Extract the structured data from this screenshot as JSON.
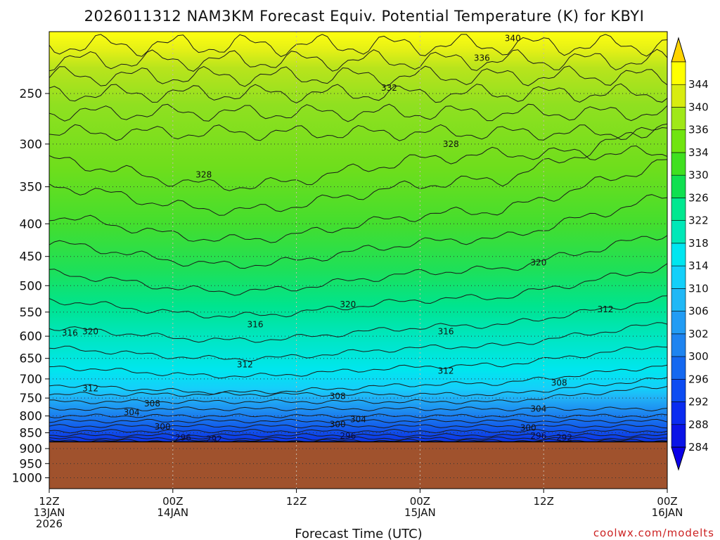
{
  "chart_data": {
    "type": "heatmap",
    "title": "2026011312 NAM3KM Forecast Equiv. Potential Temperature (K) for KBYI",
    "xlabel": "Forecast Time (UTC)",
    "ylabel": "",
    "credit": "coolwx.com/modelts",
    "y_scale": "log-pressure",
    "y_ticks": [
      "250",
      "300",
      "350",
      "400",
      "450",
      "500",
      "550",
      "600",
      "650",
      "700",
      "750",
      "800",
      "850",
      "900",
      "950",
      "1000"
    ],
    "x_ticks": [
      {
        "line1": "12Z",
        "line2": "13JAN",
        "line3": "2026"
      },
      {
        "line1": "00Z",
        "line2": "14JAN",
        "line3": ""
      },
      {
        "line1": "12Z",
        "line2": "",
        "line3": ""
      },
      {
        "line1": "00Z",
        "line2": "15JAN",
        "line3": ""
      },
      {
        "line1": "12Z",
        "line2": "",
        "line3": ""
      },
      {
        "line1": "00Z",
        "line2": "16JAN",
        "line3": ""
      }
    ],
    "x_hours": [
      0,
      12,
      24,
      36,
      48,
      60
    ],
    "colorbar_levels": [
      "284",
      "288",
      "292",
      "296",
      "300",
      "302",
      "306",
      "310",
      "314",
      "318",
      "322",
      "326",
      "330",
      "334",
      "336",
      "340",
      "344"
    ],
    "colorbar_colors": [
      "#0a14e6",
      "#0a2cf0",
      "#0c4cf2",
      "#1468f0",
      "#1e84f0",
      "#229cf4",
      "#20b8f6",
      "#14d0fa",
      "#00e6f0",
      "#00e8b8",
      "#00e890",
      "#10e050",
      "#40e020",
      "#70e410",
      "#a0e818",
      "#d8ec10",
      "#ffff00"
    ],
    "ground_color": "#a0522d",
    "ground_top_pressure": 880,
    "grid": true,
    "contour_labels": [
      {
        "text": "340",
        "hour": 45,
        "p": 205
      },
      {
        "text": "336",
        "hour": 42,
        "p": 220
      },
      {
        "text": "332",
        "hour": 33,
        "p": 245
      },
      {
        "text": "328",
        "hour": 15,
        "p": 335
      },
      {
        "text": "328",
        "hour": 39,
        "p": 300
      },
      {
        "text": "320",
        "hour": 47.5,
        "p": 460
      },
      {
        "text": "320",
        "hour": 29,
        "p": 535
      },
      {
        "text": "320",
        "hour": 4,
        "p": 590
      },
      {
        "text": "316",
        "hour": 2,
        "p": 593
      },
      {
        "text": "316",
        "hour": 20,
        "p": 575
      },
      {
        "text": "316",
        "hour": 38.5,
        "p": 590
      },
      {
        "text": "312",
        "hour": 54,
        "p": 545
      },
      {
        "text": "312",
        "hour": 19,
        "p": 665
      },
      {
        "text": "312",
        "hour": 38.5,
        "p": 680
      },
      {
        "text": "312",
        "hour": 4,
        "p": 725
      },
      {
        "text": "308",
        "hour": 10,
        "p": 765
      },
      {
        "text": "308",
        "hour": 28,
        "p": 745
      },
      {
        "text": "308",
        "hour": 49.5,
        "p": 710
      },
      {
        "text": "304",
        "hour": 8,
        "p": 790
      },
      {
        "text": "304",
        "hour": 30,
        "p": 810
      },
      {
        "text": "304",
        "hour": 47.5,
        "p": 780
      },
      {
        "text": "300",
        "hour": 11,
        "p": 832
      },
      {
        "text": "300",
        "hour": 28,
        "p": 825
      },
      {
        "text": "300",
        "hour": 46.5,
        "p": 835
      },
      {
        "text": "296",
        "hour": 13,
        "p": 865
      },
      {
        "text": "296",
        "hour": 29,
        "p": 860
      },
      {
        "text": "296",
        "hour": 47.5,
        "p": 860
      },
      {
        "text": "292",
        "hour": 16,
        "p": 870
      },
      {
        "text": "292",
        "hour": 50,
        "p": 865
      }
    ]
  }
}
